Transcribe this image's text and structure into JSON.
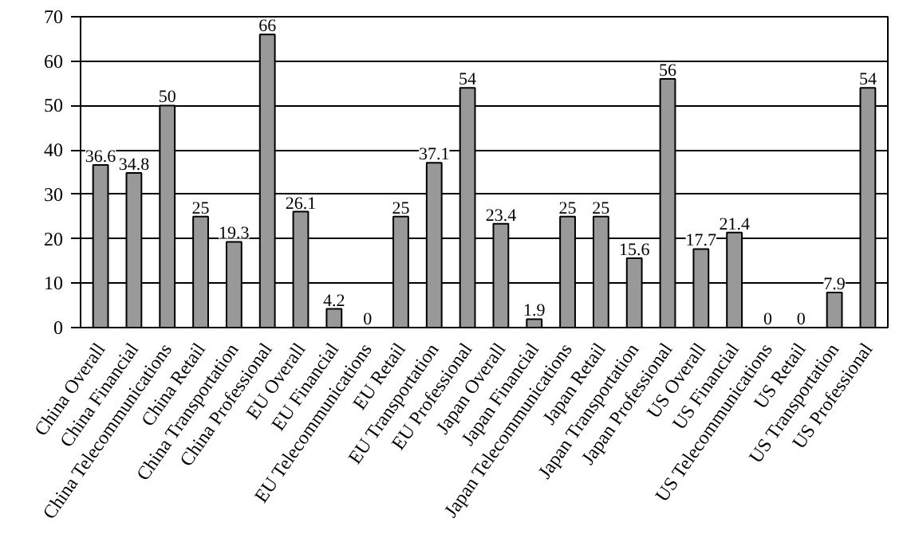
{
  "chart_data": {
    "type": "bar",
    "categories": [
      "China Overall",
      "China Financial",
      "China Telecommunications",
      "China Retail",
      "China Transportation",
      "China Professional",
      "EU Overall",
      "EU Financial",
      "EU Telecommunications",
      "EU Retail",
      "EU Transportation",
      "EU Professional",
      "Japan Overall",
      "Japan Financial",
      "Japan Telecommunications",
      "Japan Retail",
      "Japan Transportation",
      "Japan Professional",
      "US Overall",
      "US Financial",
      "US Telecommunications",
      "US Retail",
      "US Transportation",
      "US Professional"
    ],
    "values": [
      36.6,
      34.8,
      50,
      25,
      19.3,
      66,
      26.1,
      4.2,
      0,
      25,
      37.1,
      54,
      23.4,
      1.9,
      25,
      25,
      15.6,
      56,
      17.7,
      21.4,
      0,
      0,
      7.9,
      54
    ],
    "color": "#999999",
    "ylim": [
      0,
      70
    ],
    "yticks": [
      0,
      10,
      20,
      30,
      40,
      50,
      60,
      70
    ],
    "grid": "y",
    "data_labels": true
  }
}
